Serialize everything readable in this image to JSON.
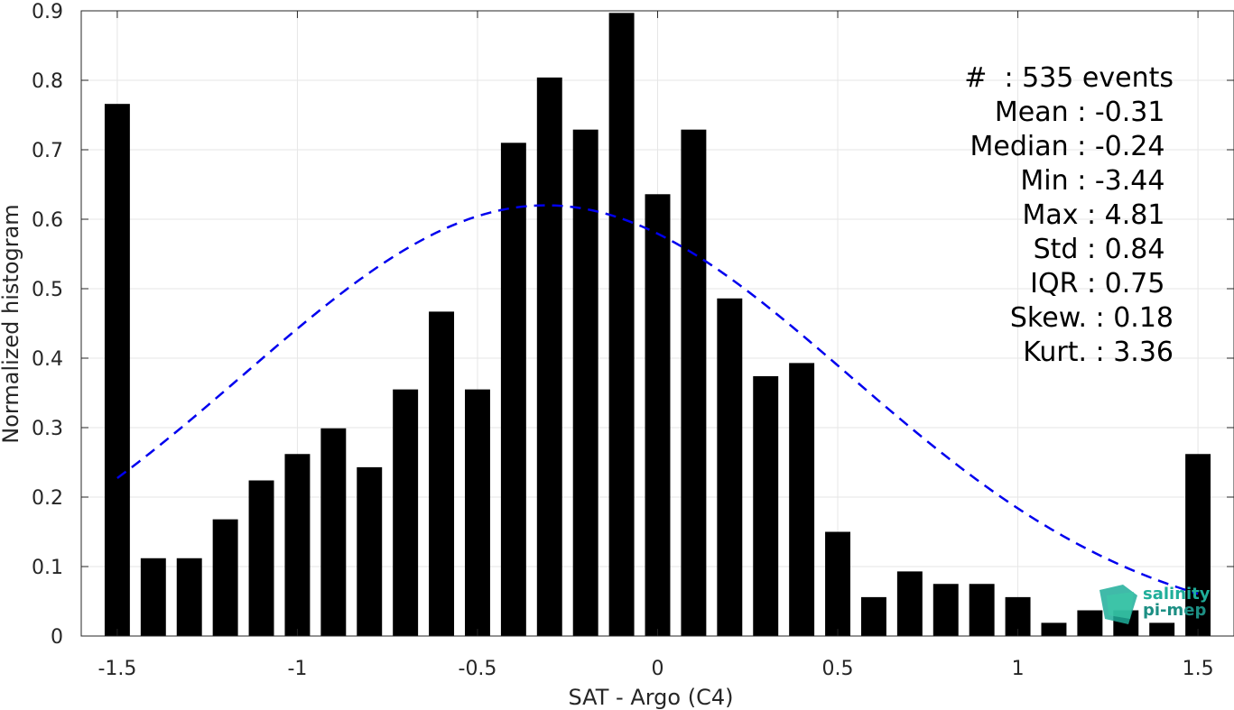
{
  "chart_data": {
    "type": "bar",
    "xlabel": "SAT - Argo (C4)",
    "ylabel": "Normalized histogram",
    "xlim": [
      -1.6,
      1.6
    ],
    "ylim": [
      0,
      0.9
    ],
    "xticks": [
      -1.5,
      -1,
      -0.5,
      0,
      0.5,
      1,
      1.5
    ],
    "xtick_labels": [
      "-1.5",
      "-1",
      "-0.5",
      "0",
      "0.5",
      "1",
      "1.5"
    ],
    "yticks": [
      0,
      0.1,
      0.2,
      0.3,
      0.4,
      0.5,
      0.6,
      0.7,
      0.8,
      0.9
    ],
    "ytick_labels": [
      "0",
      "0.1",
      "0.2",
      "0.3",
      "0.4",
      "0.5",
      "0.6",
      "0.7",
      "0.8",
      "0.9"
    ],
    "grid": true,
    "bar_color": "#000000",
    "x": [
      -1.5,
      -1.4,
      -1.3,
      -1.2,
      -1.1,
      -1.0,
      -0.9,
      -0.8,
      -0.7,
      -0.6,
      -0.5,
      -0.4,
      -0.3,
      -0.2,
      -0.1,
      0.0,
      0.1,
      0.2,
      0.3,
      0.4,
      0.5,
      0.6,
      0.7,
      0.8,
      0.9,
      1.0,
      1.1,
      1.2,
      1.3,
      1.4,
      1.5
    ],
    "values": [
      0.766,
      0.112,
      0.112,
      0.168,
      0.224,
      0.262,
      0.299,
      0.243,
      0.355,
      0.467,
      0.355,
      0.71,
      0.804,
      0.729,
      0.897,
      0.636,
      0.729,
      0.486,
      0.374,
      0.393,
      0.15,
      0.056,
      0.093,
      0.075,
      0.075,
      0.056,
      0.019,
      0.037,
      0.037,
      0.019,
      0.262
    ],
    "fit": {
      "type": "gaussian",
      "style": "dashed",
      "color": "#0000ee",
      "mean": -0.31,
      "std": 0.84,
      "peak": 0.62,
      "x_range": [
        -1.5,
        1.5
      ]
    }
  },
  "stats": {
    "lines": [
      "#  : 535 events",
      "Mean : -0.31 ",
      "Median : -0.24 ",
      "Min : -3.44 ",
      "Max : 4.81 ",
      "Std : 0.84 ",
      "IQR : 0.75 ",
      "Skew. : 0.18",
      "Kurt. : 3.36"
    ]
  },
  "logo": {
    "line1": "salinity",
    "line2": "pi-mep",
    "colors": [
      "#1fae9a",
      "#1d8f84",
      "#3cc9a8"
    ]
  }
}
